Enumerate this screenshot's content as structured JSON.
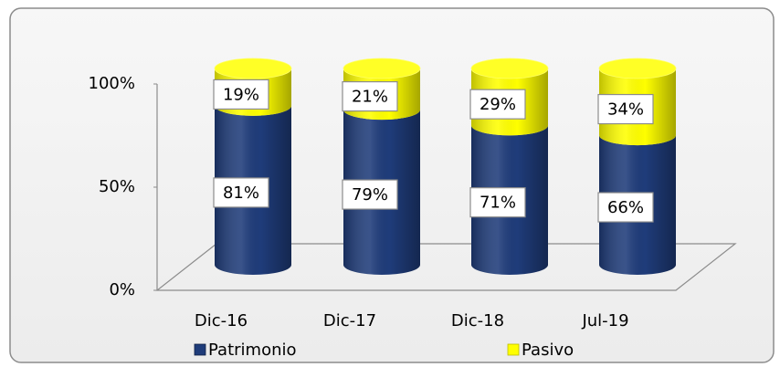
{
  "chart_data": {
    "type": "bar3d_stacked",
    "categories": [
      "Dic-16",
      "Dic-17",
      "Dic-18",
      "Jul-19"
    ],
    "series": [
      {
        "name": "Patrimonio",
        "color": "#1f3c7a",
        "values": [
          81,
          79,
          71,
          66
        ],
        "value_labels": [
          "81%",
          "79%",
          "71%",
          "66%"
        ]
      },
      {
        "name": "Pasivo",
        "color": "#ffff00",
        "values": [
          19,
          21,
          29,
          34
        ],
        "value_labels": [
          "19%",
          "21%",
          "29%",
          "34%"
        ]
      }
    ],
    "ylim": [
      0,
      100
    ],
    "yticks": [
      {
        "value": 0,
        "label": "0%"
      },
      {
        "value": 50,
        "label": "50%"
      },
      {
        "value": 100,
        "label": "100%"
      }
    ],
    "grid": false,
    "legend": "bottom"
  }
}
